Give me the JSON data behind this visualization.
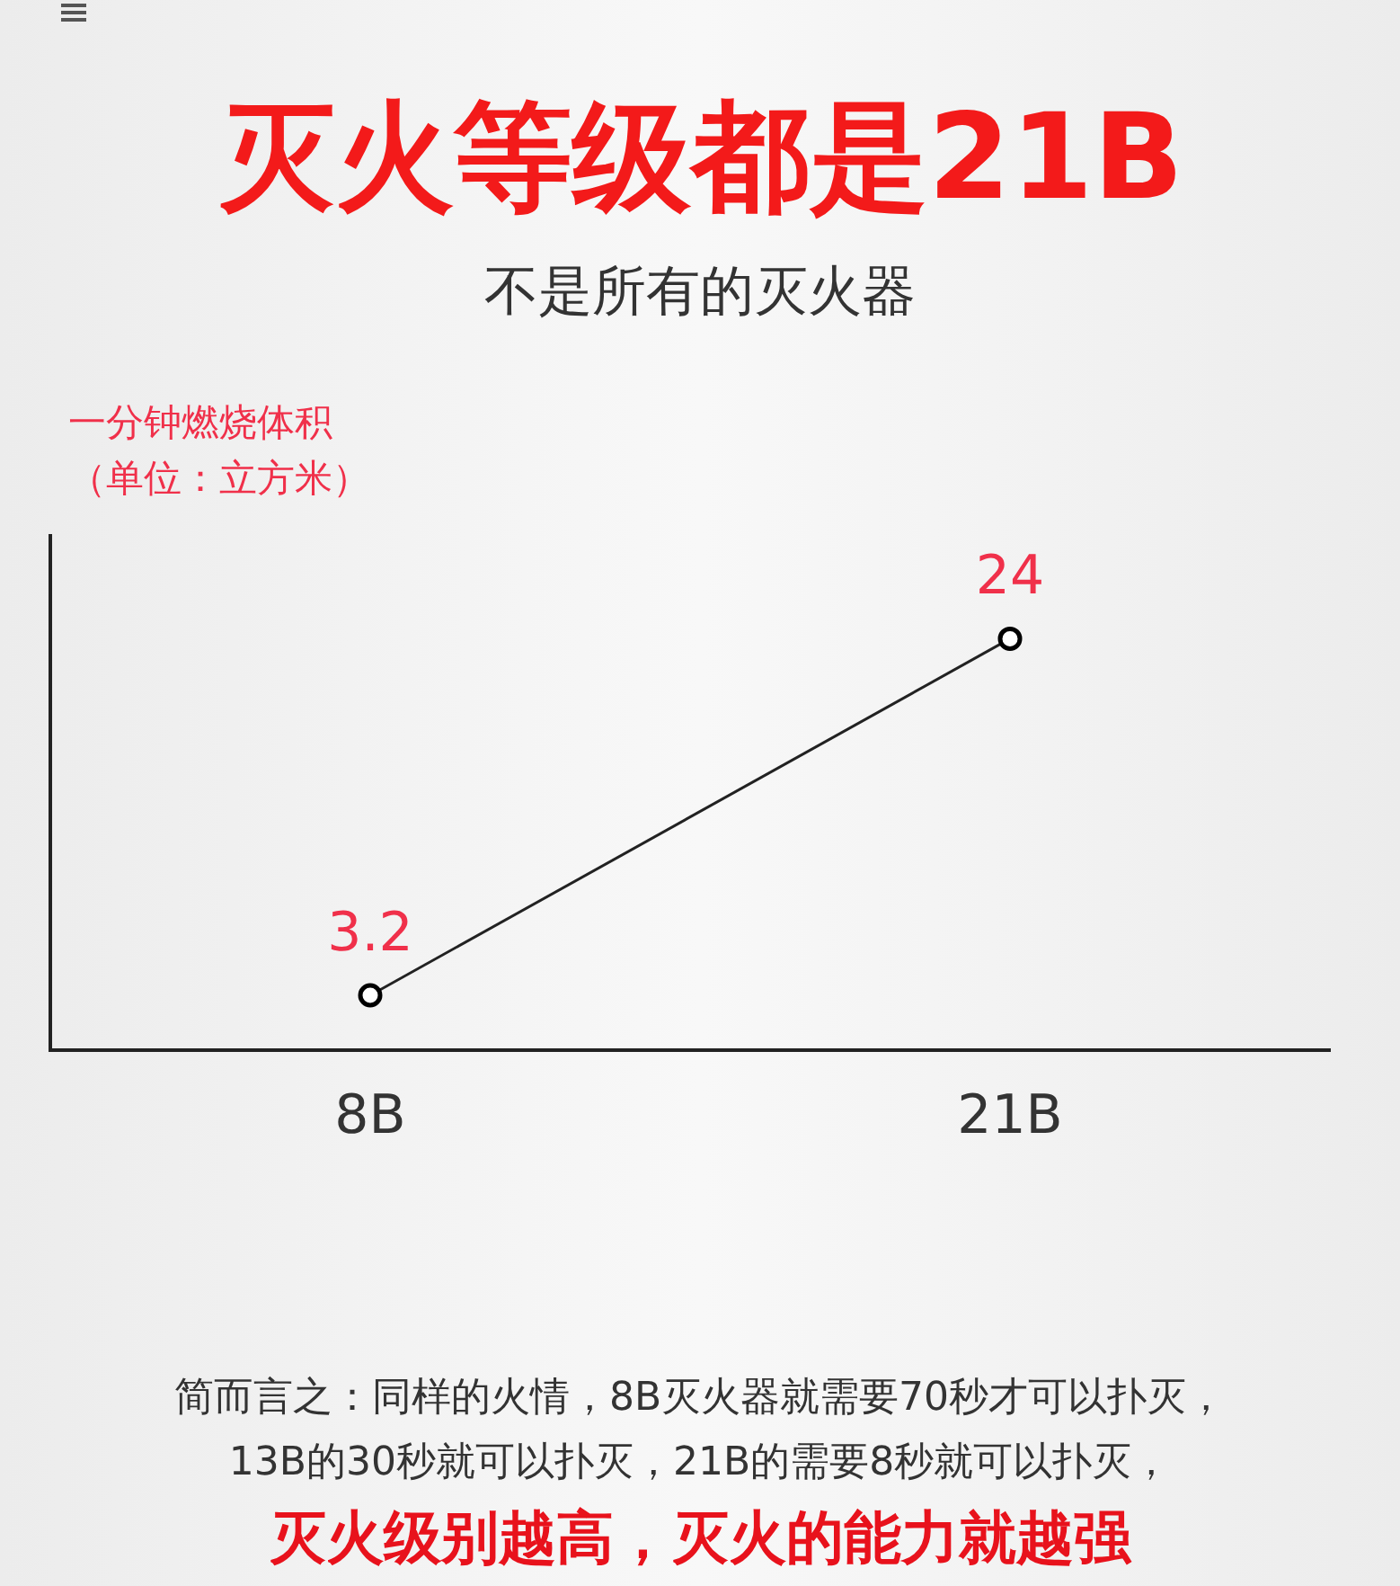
{
  "chart_data": {
    "type": "line",
    "title": "灭火等级都是21B",
    "subtitle": "不是所有的灭火器",
    "ylabel": "一分钟燃烧体积（单位：立方米）",
    "categories": [
      "8B",
      "21B"
    ],
    "series": [
      {
        "color": "#222222",
        "values": [
          3.2,
          24
        ]
      }
    ],
    "ylim": [
      0,
      30
    ],
    "tick_labels": "x",
    "data_labels": true,
    "marker": "circle",
    "grid": false,
    "legend": false,
    "annotations": [
      "简而言之：同样的火情，8B灭火器就需要70秒才可以扑灭，",
      "13B的30秒就可以扑灭，21B的需要8秒就可以扑灭，",
      "灭火级别越高，灭火的能力就越强"
    ]
  }
}
